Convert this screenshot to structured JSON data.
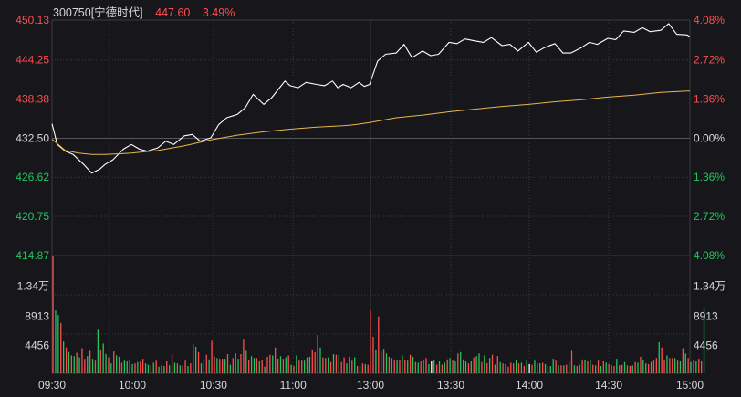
{
  "header": {
    "code_name": "300750[宁德时代]",
    "price": "447.60",
    "change_pct": "3.49%"
  },
  "colors": {
    "background": "#16161b",
    "grid": "#3a3a40",
    "up": "#ff4d4d",
    "down": "#22c55e",
    "price_line": "#ffffff",
    "avg_line": "#e8b84a",
    "neutral_text": "#d8d8d8"
  },
  "chart_data": {
    "type": "line",
    "title": "300750[宁德时代]",
    "prev_close": 432.5,
    "ylim": [
      414.87,
      450.13
    ],
    "price_ticks": [
      "450.13",
      "444.25",
      "438.38",
      "432.50",
      "426.62",
      "420.75",
      "414.87"
    ],
    "pct_ticks": [
      "4.08%",
      "2.72%",
      "1.36%",
      "0.00%",
      "1.36%",
      "2.72%",
      "4.08%"
    ],
    "volume_ticks": [
      "1.34万",
      "8913",
      "4456"
    ],
    "volume_max": 17800,
    "time_labels": [
      "09:30",
      "10:00",
      "10:30",
      "11:00",
      "13:00",
      "13:30",
      "14:00",
      "14:30",
      "15:00"
    ],
    "grid": true,
    "series": [
      {
        "key": "price",
        "x": [
          0,
          2,
          5,
          8,
          12,
          15,
          18,
          20,
          23,
          27,
          30,
          33,
          36,
          40,
          43,
          46,
          50,
          53,
          56,
          60,
          63,
          66,
          70,
          73,
          76,
          80,
          83,
          86,
          88,
          90,
          93,
          96,
          100,
          103,
          106,
          108,
          110,
          113,
          116,
          118,
          120,
          123,
          126,
          130,
          133,
          136,
          140,
          143,
          146,
          150,
          153,
          156,
          160,
          163,
          166,
          170,
          173,
          176,
          180,
          183,
          186,
          190,
          193,
          196,
          200,
          203,
          206,
          210,
          213,
          216,
          220,
          223,
          226,
          230,
          233,
          236,
          240,
          241
        ],
        "values": [
          434.6,
          431.5,
          430.5,
          430.0,
          428.5,
          427.2,
          427.8,
          428.5,
          429.2,
          430.8,
          431.5,
          430.8,
          430.5,
          431.0,
          432.0,
          431.5,
          432.8,
          433.0,
          432.0,
          432.5,
          434.5,
          435.5,
          436.0,
          437.0,
          439.0,
          437.5,
          438.5,
          440.0,
          441.0,
          440.3,
          440.0,
          440.8,
          440.5,
          440.3,
          441.0,
          440.0,
          440.5,
          440.0,
          440.8,
          440.2,
          440.5,
          444.0,
          445.0,
          445.2,
          446.5,
          444.5,
          445.5,
          444.8,
          445.0,
          446.8,
          446.6,
          447.3,
          447.0,
          446.8,
          447.5,
          446.3,
          446.5,
          445.5,
          446.8,
          445.3,
          446.0,
          446.6,
          445.2,
          445.2,
          446.0,
          446.8,
          446.5,
          447.4,
          447.2,
          448.5,
          448.3,
          449.0,
          448.4,
          448.6,
          449.6,
          448.0,
          447.9,
          447.6
        ]
      },
      {
        "key": "avg",
        "x": [
          0,
          5,
          10,
          15,
          20,
          25,
          30,
          40,
          50,
          60,
          70,
          80,
          90,
          100,
          110,
          115,
          120,
          130,
          140,
          150,
          160,
          170,
          180,
          190,
          200,
          210,
          220,
          230,
          240,
          241
        ],
        "values": [
          432.3,
          430.6,
          430.2,
          430.0,
          430.0,
          430.1,
          430.2,
          430.6,
          431.3,
          432.2,
          432.9,
          433.4,
          433.8,
          434.1,
          434.3,
          434.5,
          434.8,
          435.5,
          435.9,
          436.4,
          436.8,
          437.2,
          437.5,
          437.9,
          438.2,
          438.6,
          438.9,
          439.3,
          439.5,
          439.5
        ]
      }
    ],
    "volume": {
      "values": [
        17800,
        9500,
        8800,
        7600,
        4800,
        3900,
        3200,
        2700,
        2600,
        3100,
        2400,
        3800,
        2200,
        2600,
        3400,
        2200,
        1900,
        6600,
        3500,
        4500,
        2900,
        2400,
        1500,
        3300,
        2700,
        2500,
        1600,
        1900,
        1800,
        2000,
        1400,
        1500,
        1700,
        1800,
        2200,
        1500,
        1300,
        1200,
        1600,
        1900,
        1000,
        1200,
        1100,
        1800,
        1200,
        2900,
        1600,
        1500,
        1200,
        1200,
        1900,
        1100,
        1500,
        4400,
        4000,
        3200,
        1500,
        1900,
        2800,
        2100,
        4900,
        2500,
        2300,
        2200,
        2200,
        2200,
        2900,
        1300,
        2300,
        3000,
        2200,
        2900,
        5200,
        3400,
        2000,
        2600,
        2300,
        2300,
        1800,
        2000,
        1000,
        2500,
        2800,
        2700,
        3900,
        2200,
        2600,
        2200,
        2400,
        2700,
        1300,
        1100,
        2700,
        1900,
        1900,
        1900,
        2400,
        2500,
        3600,
        3200,
        5800,
        3900,
        2400,
        2300,
        2400,
        1700,
        2900,
        2800,
        2800,
        1700,
        2400,
        1500,
        2500,
        1900,
        2400,
        1100,
        1100,
        1500,
        1400,
        1300,
        9500,
        5500,
        3600,
        8600,
        3300,
        3700,
        3000,
        2500,
        2300,
        2100,
        1900,
        2000,
        2700,
        2000,
        1900,
        2800,
        2500,
        1700,
        1600,
        1800,
        2100,
        2300,
        1400,
        1800,
        2000,
        1300,
        1800,
        1300,
        1600,
        2100,
        2300,
        2000,
        1800,
        3000,
        3200,
        2100,
        1800,
        1500,
        1800,
        2400,
        2600,
        3000,
        1700,
        2700,
        1500,
        2300,
        2800,
        1300,
        2600,
        1700,
        1500,
        1400,
        1000,
        1600,
        1500,
        2000,
        1500,
        1600,
        1100,
        2100,
        1400,
        1300,
        1900,
        1500,
        1500,
        1600,
        1400,
        1100,
        1100,
        2200,
        1900,
        1200,
        1200,
        1200,
        1300,
        1700,
        3400,
        1200,
        1100,
        1300,
        2100,
        2000,
        1800,
        2100,
        1300,
        1200,
        1900,
        1100,
        1800,
        1600,
        1400,
        1200,
        1100,
        2200,
        1200,
        1300,
        1700,
        1200,
        1100,
        1200,
        1700,
        1600,
        2500,
        2000,
        1500,
        1400,
        1700,
        1900,
        2300,
        4700,
        3900,
        2000,
        2700,
        2300,
        2300,
        2300,
        1900,
        1800,
        3800,
        3000,
        2300,
        1700,
        1900,
        1800,
        2200,
        1800,
        9800
      ],
      "colors": [
        "r",
        "g",
        "g",
        "r",
        "g",
        "r",
        "g",
        "r",
        "g",
        "r",
        "g",
        "r",
        "r",
        "g",
        "r",
        "g",
        "r",
        "g",
        "r",
        "g",
        "g",
        "r",
        "g",
        "r",
        "g",
        "r",
        "r",
        "g",
        "g",
        "r",
        "g",
        "r",
        "g",
        "r",
        "r",
        "g",
        "g",
        "r",
        "g",
        "r",
        "g",
        "r",
        "g",
        "r",
        "g",
        "r",
        "g",
        "r",
        "g",
        "r",
        "r",
        "g",
        "r",
        "r",
        "g",
        "r",
        "g",
        "r",
        "r",
        "g",
        "r",
        "r",
        "g",
        "r",
        "r",
        "g",
        "r",
        "g",
        "r",
        "r",
        "g",
        "r",
        "r",
        "g",
        "r",
        "g",
        "g",
        "r",
        "g",
        "r",
        "g",
        "r",
        "r",
        "g",
        "r",
        "r",
        "g",
        "r",
        "g",
        "r",
        "g",
        "r",
        "g",
        "r",
        "r",
        "g",
        "r",
        "g",
        "r",
        "r",
        "r",
        "g",
        "r",
        "r",
        "g",
        "r",
        "g",
        "r",
        "g",
        "r",
        "r",
        "g",
        "g",
        "r",
        "g",
        "r",
        "g",
        "r",
        "g",
        "r",
        "r",
        "r",
        "g",
        "r",
        "g",
        "r",
        "g",
        "r",
        "g",
        "r",
        "g",
        "r",
        "g",
        "r",
        "g",
        "r",
        "g",
        "r",
        "g",
        "r",
        "g",
        "r",
        "g",
        "w",
        "g",
        "r",
        "g",
        "r",
        "g",
        "r",
        "g",
        "r",
        "g",
        "r",
        "g",
        "r",
        "g",
        "r",
        "g",
        "r",
        "g",
        "g",
        "r",
        "g",
        "r",
        "g",
        "r",
        "g",
        "r",
        "g",
        "r",
        "g",
        "r",
        "r",
        "r",
        "g",
        "r",
        "g",
        "r",
        "g",
        "w",
        "r",
        "g",
        "r",
        "g",
        "r",
        "g",
        "r",
        "g",
        "g",
        "r",
        "g",
        "r",
        "g",
        "r",
        "g",
        "r",
        "g",
        "r",
        "g",
        "r",
        "g",
        "r",
        "g",
        "r",
        "g",
        "r",
        "g",
        "r",
        "g",
        "r",
        "g",
        "r",
        "g",
        "r",
        "r",
        "g",
        "r",
        "r",
        "g",
        "r",
        "g",
        "r",
        "g",
        "g",
        "r",
        "g",
        "r",
        "r",
        "g",
        "r",
        "r",
        "g",
        "r",
        "r",
        "g",
        "r",
        "g",
        "r",
        "g",
        "r",
        "g",
        "r",
        "g",
        "r",
        "r",
        "g"
      ]
    }
  }
}
